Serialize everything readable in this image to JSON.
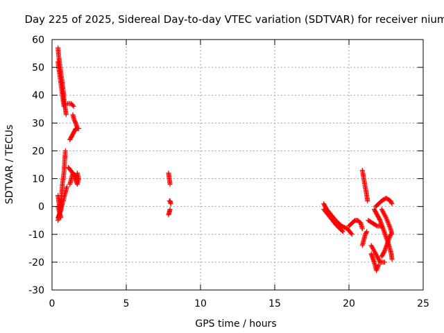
{
  "chart_data": {
    "type": "scatter",
    "title": "Day 225 of 2025, Sidereal Day-to-day VTEC variation (SDTVAR) for receiver nium",
    "xlabel": "GPS time / hours",
    "ylabel": "SDTVAR / TECUs",
    "xlim": [
      0,
      25
    ],
    "ylim": [
      -30,
      60
    ],
    "xticks": [
      0,
      5,
      10,
      15,
      20,
      25
    ],
    "yticks": [
      -30,
      -20,
      -10,
      0,
      10,
      20,
      30,
      40,
      50,
      60
    ],
    "grid": true,
    "marker": "+",
    "color": "#ff0000",
    "series": [
      {
        "name": "SDTVAR",
        "tracks": [
          [
            [
              0.4,
              57
            ],
            [
              0.45,
              54
            ],
            [
              0.55,
              50
            ],
            [
              0.65,
              46
            ],
            [
              0.75,
              42
            ],
            [
              0.82,
              38
            ],
            [
              0.9,
              35
            ],
            [
              0.95,
              33
            ]
          ],
          [
            [
              0.4,
              52
            ],
            [
              0.5,
              48
            ],
            [
              0.6,
              44
            ],
            [
              0.7,
              40
            ],
            [
              0.8,
              36
            ]
          ],
          [
            [
              0.4,
              -5
            ],
            [
              0.5,
              -3
            ],
            [
              0.6,
              0
            ],
            [
              0.65,
              4
            ],
            [
              0.7,
              8
            ],
            [
              0.8,
              12
            ],
            [
              0.85,
              16
            ],
            [
              0.9,
              20
            ]
          ],
          [
            [
              0.4,
              -4
            ],
            [
              0.55,
              -2
            ],
            [
              0.7,
              1
            ],
            [
              0.85,
              4
            ],
            [
              1.0,
              7
            ]
          ],
          [
            [
              0.4,
              0
            ],
            [
              0.5,
              -2
            ],
            [
              0.6,
              -4
            ]
          ],
          [
            [
              0.4,
              4
            ],
            [
              0.45,
              2
            ],
            [
              0.5,
              0
            ]
          ],
          [
            [
              1.05,
              37
            ],
            [
              1.3,
              37
            ],
            [
              1.45,
              36
            ]
          ],
          [
            [
              1.2,
              24
            ],
            [
              1.4,
              26
            ],
            [
              1.6,
              28
            ],
            [
              1.8,
              28
            ]
          ],
          [
            [
              1.4,
              33
            ],
            [
              1.5,
              31
            ],
            [
              1.6,
              30
            ],
            [
              1.7,
              28
            ]
          ],
          [
            [
              1.2,
              8
            ],
            [
              1.3,
              10
            ],
            [
              1.4,
              12
            ],
            [
              1.55,
              10
            ],
            [
              1.7,
              8
            ],
            [
              1.8,
              10
            ],
            [
              1.7,
              12
            ]
          ],
          [
            [
              1.1,
              14
            ],
            [
              1.25,
              13
            ],
            [
              1.4,
              12
            ],
            [
              1.6,
              11
            ],
            [
              1.75,
              10
            ]
          ],
          [
            [
              7.85,
              12
            ],
            [
              7.9,
              10
            ],
            [
              7.95,
              8
            ]
          ],
          [
            [
              7.9,
              2
            ],
            [
              7.95,
              2
            ],
            [
              8.0,
              1
            ]
          ],
          [
            [
              7.85,
              -3
            ],
            [
              7.9,
              -2
            ],
            [
              7.95,
              -1
            ]
          ],
          [
            [
              18.3,
              1
            ],
            [
              18.5,
              -1
            ],
            [
              18.8,
              -3
            ],
            [
              19.1,
              -5
            ],
            [
              19.5,
              -7
            ],
            [
              19.9,
              -8
            ],
            [
              20.2,
              -10
            ]
          ],
          [
            [
              18.3,
              -1
            ],
            [
              18.6,
              -3
            ],
            [
              18.9,
              -5
            ],
            [
              19.2,
              -7
            ],
            [
              19.6,
              -9
            ]
          ],
          [
            [
              20.0,
              -7
            ],
            [
              20.2,
              -6
            ],
            [
              20.4,
              -5
            ],
            [
              20.6,
              -5
            ],
            [
              20.8,
              -6
            ],
            [
              20.9,
              -8
            ]
          ],
          [
            [
              20.9,
              13
            ],
            [
              21.0,
              10
            ],
            [
              21.1,
              7
            ],
            [
              21.2,
              4
            ],
            [
              21.25,
              2
            ]
          ],
          [
            [
              20.9,
              -14
            ],
            [
              21.0,
              -12
            ],
            [
              21.1,
              -10
            ],
            [
              21.2,
              -9
            ]
          ],
          [
            [
              21.3,
              -5
            ],
            [
              21.6,
              -6
            ],
            [
              21.9,
              -7
            ],
            [
              22.2,
              -7
            ]
          ],
          [
            [
              21.5,
              -17
            ],
            [
              21.7,
              -20
            ],
            [
              21.85,
              -23
            ],
            [
              22.0,
              -21
            ]
          ],
          [
            [
              21.5,
              -14
            ],
            [
              21.8,
              -17
            ],
            [
              22.1,
              -20
            ],
            [
              22.4,
              -20
            ]
          ],
          [
            [
              21.7,
              -1
            ],
            [
              21.9,
              -3
            ],
            [
              22.1,
              -5
            ],
            [
              22.3,
              -8
            ],
            [
              22.5,
              -11
            ],
            [
              22.7,
              -14
            ],
            [
              22.85,
              -17
            ],
            [
              22.9,
              -19
            ]
          ],
          [
            [
              21.8,
              0
            ],
            [
              22.0,
              1
            ],
            [
              22.2,
              2
            ],
            [
              22.5,
              3
            ],
            [
              22.8,
              2
            ],
            [
              22.9,
              1
            ]
          ],
          [
            [
              22.2,
              -1
            ],
            [
              22.5,
              -4
            ],
            [
              22.8,
              -8
            ],
            [
              22.9,
              -10
            ]
          ],
          [
            [
              22.2,
              -18
            ],
            [
              22.4,
              -16
            ],
            [
              22.6,
              -13
            ],
            [
              22.8,
              -10
            ]
          ]
        ]
      }
    ]
  }
}
